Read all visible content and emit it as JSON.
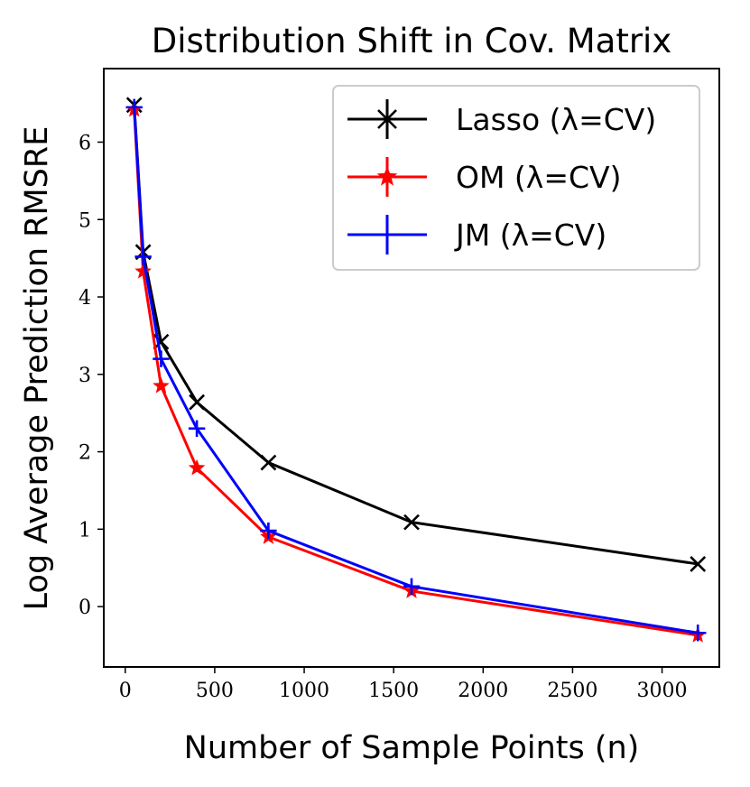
{
  "chart_data": {
    "type": "line",
    "title": "Distribution Shift in Cov. Matrix",
    "xlabel": "Number of Sample Points (n)",
    "ylabel": "Log Average Prediction RMSRE",
    "xlim": [
      -120,
      3320
    ],
    "ylim": [
      -0.78,
      6.95
    ],
    "xticks": [
      0,
      500,
      1000,
      1500,
      2000,
      2500,
      3000
    ],
    "xtick_labels": [
      "0",
      "500",
      "1000",
      "1500",
      "2000",
      "2500",
      "3000"
    ],
    "yticks": [
      0,
      1,
      2,
      3,
      4,
      5,
      6
    ],
    "ytick_labels": [
      "0",
      "1",
      "2",
      "3",
      "4",
      "5",
      "6"
    ],
    "grid": false,
    "legend_position": "top-right",
    "x": [
      50,
      100,
      200,
      400,
      800,
      1600,
      3200
    ],
    "series": [
      {
        "name": "Lasso (λ=CV)",
        "color": "#000000",
        "marker": "x",
        "values": [
          6.48,
          4.58,
          3.42,
          2.64,
          1.86,
          1.09,
          0.55
        ]
      },
      {
        "name": "OM (λ=CV)",
        "color": "#ff0000",
        "marker": "star",
        "values": [
          6.42,
          4.33,
          2.85,
          1.79,
          0.9,
          0.2,
          -0.37
        ]
      },
      {
        "name": "JM (λ=CV)",
        "color": "#0000ff",
        "marker": "plus",
        "values": [
          6.45,
          4.52,
          3.2,
          2.3,
          0.98,
          0.26,
          -0.34
        ]
      }
    ]
  }
}
